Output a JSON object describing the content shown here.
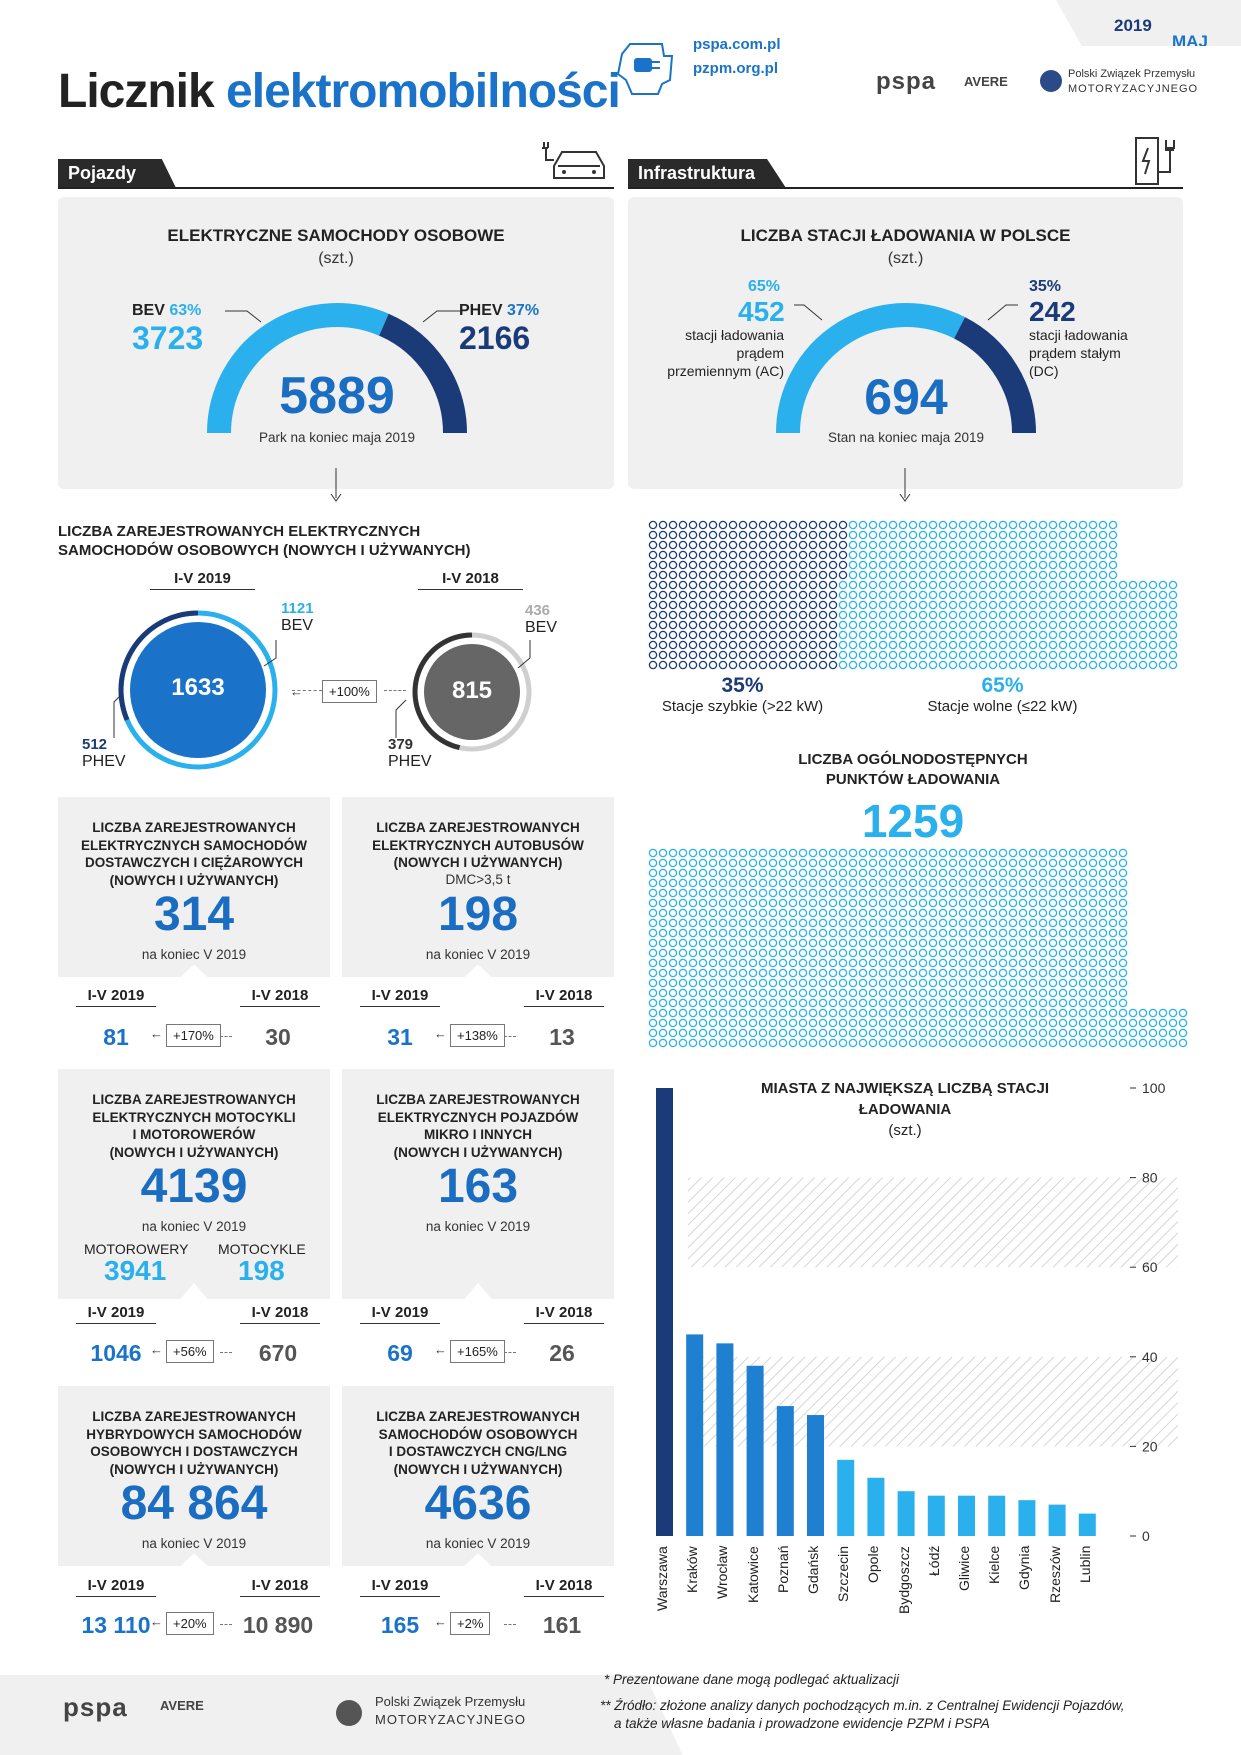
{
  "header": {
    "month": "MAJ",
    "year": "2019",
    "title_part1": "Licznik",
    "title_part2": "elektromobilności",
    "url1": "pspa.com.pl",
    "url2": "pzpm.org.pl",
    "logo_pspa": "pspa",
    "logo_avere": "AVERE",
    "logo_pzpm_line1": "Polski Związek Przemysłu",
    "logo_pzpm_line2": "MOTORYZACYJNEGO"
  },
  "sections": {
    "vehicles": "Pojazdy",
    "infrastructure": "Infrastruktura"
  },
  "cars": {
    "title": "ELEKTRYCZNE SAMOCHODY OSOBOWE",
    "unit": "(szt.)",
    "bev_label": "BEV",
    "bev_pct": "63%",
    "bev_value": "3723",
    "phev_label": "PHEV",
    "phev_pct": "37%",
    "phev_value": "2166",
    "total": "5889",
    "caption": "Park na koniec maja 2019",
    "bev_share": 0.63
  },
  "stations": {
    "title": "LICZBA STACJI ŁADOWANIA W POLSCE",
    "unit": "(szt.)",
    "ac_pct": "65%",
    "ac_value": "452",
    "ac_desc1": "stacji ładowania",
    "ac_desc2": "prądem",
    "ac_desc3": "przemiennym (AC)",
    "dc_pct": "35%",
    "dc_value": "242",
    "dc_desc1": "stacji ładowania",
    "dc_desc2": "prądem stałym",
    "dc_desc3": "(DC)",
    "total": "694",
    "caption": "Stan na koniec maja 2019",
    "ac_share": 0.65
  },
  "registered_cars": {
    "title1": "LICZBA ZAREJESTROWANYCH ELEKTRYCZNYCH",
    "title2": "SAMOCHODÓW OSOBOWYCH (NOWYCH I UŻYWANYCH)",
    "period_a": "I-V 2019",
    "period_b": "I-V 2018",
    "total_a": "1633",
    "total_b": "815",
    "bev_a": "1121",
    "bev_b": "436",
    "phev_a": "512",
    "phev_b": "379",
    "bev_label": "BEV",
    "phev_label": "PHEV",
    "change": "+100%"
  },
  "fast_slow": {
    "fast_pct": "35%",
    "fast_label": "Stacje szybkie (>22 kW)",
    "slow_pct": "65%",
    "slow_label": "Stacje wolne (≤22 kW)"
  },
  "points": {
    "title1": "LICZBA OGÓLNODOSTĘPNYCH",
    "title2": "PUNKTÓW ŁADOWANIA",
    "value": "1259"
  },
  "cards": [
    {
      "title": [
        "LICZBA ZAREJESTROWANYCH",
        "ELEKTRYCZNYCH SAMOCHODÓW",
        "DOSTAWCZYCH I CIĘŻAROWYCH",
        "(NOWYCH I UŻYWANYCH)"
      ],
      "extra": "",
      "value": "314",
      "caption": "na koniec V 2019",
      "a": "81",
      "b": "30",
      "change": "+170%"
    },
    {
      "title": [
        "LICZBA ZAREJESTROWANYCH",
        "ELEKTRYCZNYCH AUTOBUSÓW",
        "(NOWYCH I UŻYWANYCH)"
      ],
      "extra": "DMC>3,5 t",
      "value": "198",
      "caption": "na koniec V 2019",
      "a": "31",
      "b": "13",
      "change": "+138%"
    },
    {
      "title": [
        "LICZBA ZAREJESTROWANYCH",
        "ELEKTRYCZNYCH MOTOCYKLI",
        "I MOTOROWERÓW",
        "(NOWYCH I UŻYWANYCH)"
      ],
      "extra": "",
      "value": "4139",
      "caption": "na koniec V 2019",
      "a": "1046",
      "b": "670",
      "change": "+56%"
    },
    {
      "title": [
        "LICZBA ZAREJESTROWANYCH",
        "ELEKTRYCZNYCH POJAZDÓW",
        "MIKRO I INNYCH",
        "(NOWYCH I UŻYWANYCH)"
      ],
      "extra": "",
      "value": "163",
      "caption": "na koniec V 2019",
      "a": "69",
      "b": "26",
      "change": "+165%"
    },
    {
      "title": [
        "LICZBA ZAREJESTROWANYCH",
        "HYBRYDOWYCH SAMOCHODÓW",
        "OSOBOWYCH I DOSTAWCZYCH",
        "(NOWYCH I UŻYWANYCH)"
      ],
      "extra": "",
      "value": "84 864",
      "caption": "na koniec V 2019",
      "a": "13 110",
      "b": "10 890",
      "change": "+20%"
    },
    {
      "title": [
        "LICZBA ZAREJESTROWANYCH",
        "SAMOCHODÓW OSOBOWYCH",
        "I DOSTAWCZYCH CNG/LNG",
        "(NOWYCH I UŻYWANYCH)"
      ],
      "extra": "",
      "value": "4636",
      "caption": "na koniec V 2019",
      "a": "165",
      "b": "161",
      "change": "+2%"
    }
  ],
  "period_a": "I-V 2019",
  "period_b": "I-V 2018",
  "moto": {
    "mopeds_label": "MOTOROWERY",
    "mopeds_value": "3941",
    "motorcycles_label": "MOTOCYKLE",
    "motorcycles_value": "198"
  },
  "chart_data": {
    "type": "bar",
    "title": "MIASTA Z NAJWIĘKSZĄ LICZBĄ STACJI ŁADOWANIA",
    "ylabel": "(szt.)",
    "categories": [
      "Warszawa",
      "Kraków",
      "Wrocław",
      "Katowice",
      "Poznań",
      "Gdańsk",
      "Szczecin",
      "Opole",
      "Bydgoszcz",
      "Łódź",
      "Gliwice",
      "Kielce",
      "Gdynia",
      "Rzeszów",
      "Lublin"
    ],
    "values": [
      100,
      45,
      43,
      38,
      29,
      27,
      17,
      13,
      10,
      9,
      9,
      9,
      8,
      7,
      5
    ],
    "ylim": [
      0,
      100
    ],
    "yticks": [
      "0",
      "20",
      "40",
      "60",
      "80",
      "100"
    ],
    "colors": {
      "first": "#1a3a78",
      "mid": "#1f7fd0",
      "rest": "#2ab0ec"
    }
  },
  "footnotes": {
    "n1": "* Prezentowane dane mogą podlegać aktualizacji",
    "n2a": "** Źródło: złożone analizy danych pochodzących m.in. z Centralnej Ewidencji Pojazdów,",
    "n2b": "a także własne badania i prowadzone ewidencje PZPM i PSPA"
  }
}
